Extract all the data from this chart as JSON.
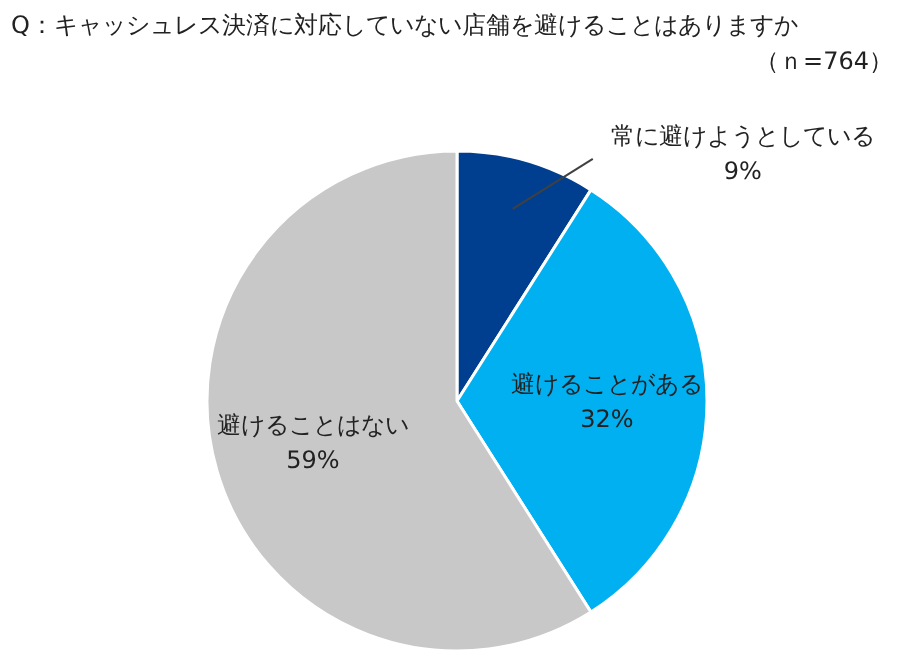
{
  "chart_data": {
    "type": "pie",
    "title": "Q：キャッシュレス決済に対応していない店舗を避けることはありますか",
    "subtitle": "（ｎ=764）",
    "categories": [
      "常に避けようとしている",
      "避けることがある",
      "避けることはない"
    ],
    "values": [
      9,
      32,
      59
    ],
    "value_labels": [
      "9%",
      "32%",
      "59%"
    ],
    "colors": [
      "#003f8f",
      "#00b0f0",
      "#c8c8c8"
    ]
  }
}
